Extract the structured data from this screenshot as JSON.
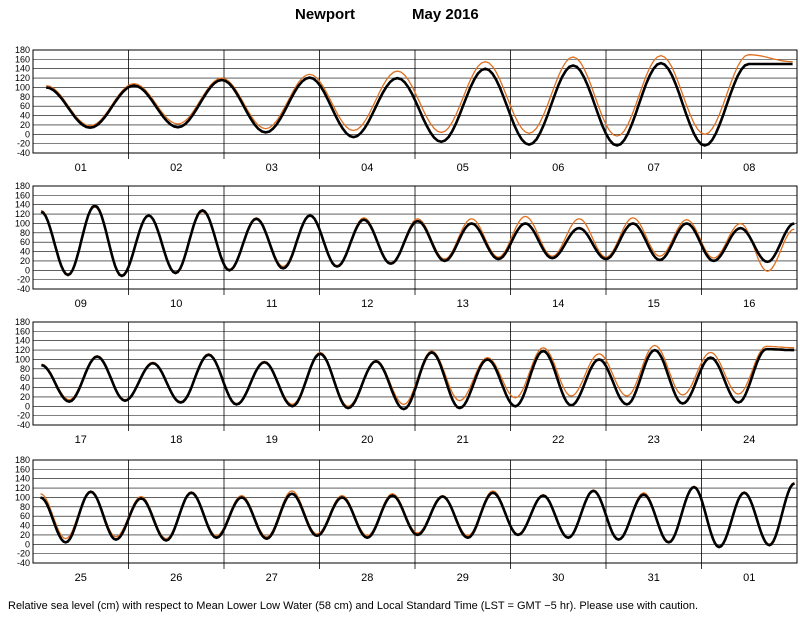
{
  "header": {
    "station": "Newport",
    "month_year": "May   2016"
  },
  "footer": {
    "note": "Relative sea level (cm) with respect to Mean Lower Low Water (58 cm) and Local Standard Time (LST = GMT −5 hr). Please use with caution."
  },
  "chart_data": {
    "type": "line",
    "title": "Newport May 2016",
    "ylim": [
      -40,
      180
    ],
    "yticks": [
      -40,
      -20,
      0,
      20,
      40,
      60,
      80,
      100,
      120,
      140,
      160,
      180
    ],
    "grid": true,
    "panels": [
      {
        "days": [
          "01",
          "02",
          "03",
          "04",
          "05",
          "06",
          "07",
          "08"
        ],
        "series": [
          {
            "color": "#000000",
            "highs": [
              100,
              104,
              116,
              121,
              120,
              140,
              147,
              152,
              150,
              150
            ],
            "lows": [
              14,
              15,
              4,
              -6,
              -16,
              -22,
              -24,
              -24
            ]
          },
          {
            "color": "#e07020",
            "highs": [
              104,
              108,
              120,
              128,
              135,
              155,
              165,
              168,
              170,
              155
            ],
            "lows": [
              18,
              22,
              12,
              8,
              4,
              2,
              -4,
              0
            ]
          }
        ]
      },
      {
        "days": [
          "09",
          "10",
          "11",
          "12",
          "13",
          "14",
          "15",
          "16"
        ],
        "series": [
          {
            "color": "#000000",
            "highs": [
              125,
              138,
              117,
              128,
              110,
              117,
              108,
              105,
              100,
              100,
              90,
              100,
              100,
              90,
              100
            ],
            "lows": [
              -10,
              -12,
              -6,
              0,
              4,
              8,
              14,
              20,
              24,
              26,
              24,
              22,
              20,
              18
            ]
          },
          {
            "color": "#e07020",
            "highs": [
              128,
              135,
              118,
              125,
              112,
              118,
              112,
              110,
              110,
              115,
              110,
              112,
              108,
              100,
              88
            ],
            "lows": [
              -8,
              -10,
              -4,
              2,
              8,
              10,
              16,
              24,
              28,
              30,
              28,
              30,
              26,
              -2
            ]
          }
        ]
      },
      {
        "days": [
          "17",
          "18",
          "19",
          "20",
          "21",
          "22",
          "23",
          "24"
        ],
        "series": [
          {
            "color": "#000000",
            "highs": [
              88,
              106,
              92,
              110,
              94,
              112,
              96,
              115,
              100,
              118,
              100,
              120,
              104,
              122,
              120
            ],
            "lows": [
              10,
              12,
              8,
              4,
              0,
              -4,
              -6,
              -4,
              0,
              2,
              4,
              6,
              8
            ]
          },
          {
            "color": "#e07020",
            "highs": [
              90,
              108,
              94,
              112,
              96,
              115,
              98,
              118,
              104,
              125,
              112,
              130,
              115,
              128,
              125
            ],
            "lows": [
              14,
              14,
              10,
              6,
              4,
              0,
              4,
              12,
              18,
              22,
              22,
              24,
              26
            ]
          }
        ]
      },
      {
        "days": [
          "25",
          "26",
          "27",
          "28",
          "29",
          "30",
          "31",
          "01"
        ],
        "series": [
          {
            "color": "#000000",
            "highs": [
              100,
              112,
              98,
              110,
              100,
              108,
              100,
              104,
              102,
              110,
              104,
              114,
              106,
              122,
              110,
              130
            ],
            "lows": [
              4,
              10,
              8,
              14,
              12,
              18,
              14,
              20,
              14,
              20,
              14,
              10,
              4,
              -6,
              -2
            ]
          },
          {
            "color": "#e07020",
            "highs": [
              108,
              114,
              102,
              112,
              104,
              114,
              104,
              108,
              104,
              114,
              106,
              116,
              110,
              124,
              112,
              132
            ],
            "lows": [
              12,
              16,
              12,
              18,
              16,
              22,
              18,
              24,
              18,
              22,
              14,
              12,
              6,
              -4,
              0
            ]
          }
        ]
      }
    ]
  }
}
